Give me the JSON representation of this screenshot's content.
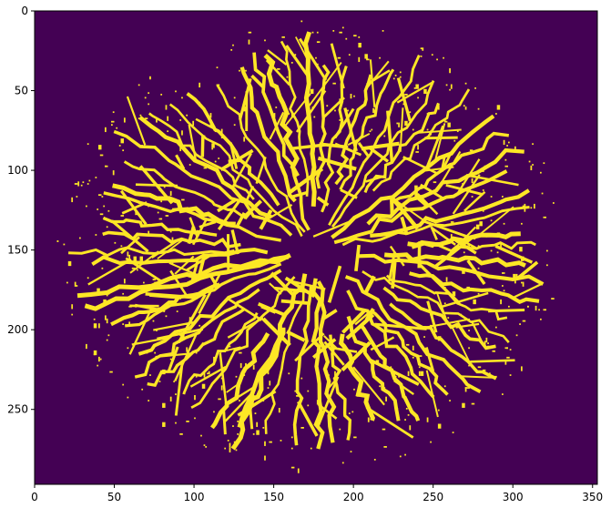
{
  "image": {
    "kind": "binary-mask-imshow",
    "rows": 297,
    "cols": 353,
    "colors": {
      "background": "#440154",
      "foreground": "#fde725",
      "axis": "#000000"
    },
    "foreground_shape": {
      "center_col": 176,
      "center_row": 150,
      "radius_cols_left": 160,
      "radius_cols_right": 152,
      "radius_rows_top": 142,
      "radius_rows_bottom": 135,
      "branch_count": 64,
      "seed": 7
    }
  },
  "axes": {
    "x_ticks": [
      {
        "value": 0,
        "label": "0"
      },
      {
        "value": 50,
        "label": "50"
      },
      {
        "value": 100,
        "label": "100"
      },
      {
        "value": 150,
        "label": "150"
      },
      {
        "value": 200,
        "label": "200"
      },
      {
        "value": 250,
        "label": "250"
      },
      {
        "value": 300,
        "label": "300"
      },
      {
        "value": 350,
        "label": "350"
      }
    ],
    "y_ticks": [
      {
        "value": 0,
        "label": "0"
      },
      {
        "value": 50,
        "label": "50"
      },
      {
        "value": 100,
        "label": "100"
      },
      {
        "value": 150,
        "label": "150"
      },
      {
        "value": 200,
        "label": "200"
      },
      {
        "value": 250,
        "label": "250"
      }
    ]
  }
}
